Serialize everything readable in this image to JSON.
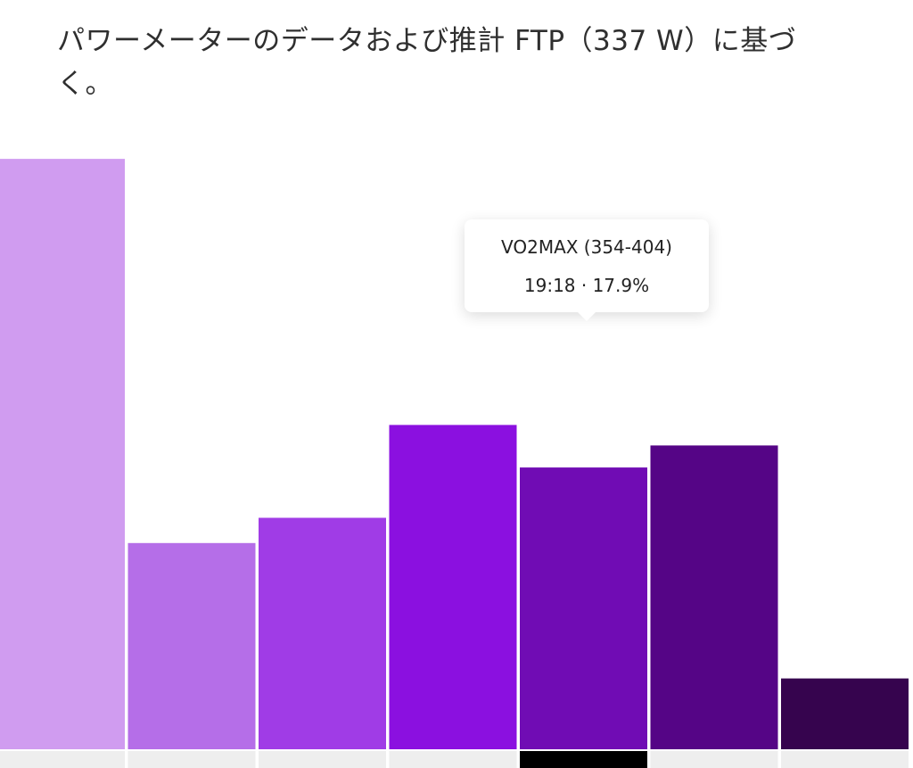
{
  "caption": "パワーメーターのデータおよび推計 FTP（337 W）に基づく。",
  "colors": {
    "background": "#ffffff",
    "axis_segment": "#eeeeee",
    "axis_segment_active": "#000000",
    "bar_colors": [
      "#d09cf0",
      "#b56ee8",
      "#a03ce6",
      "#8b10e0",
      "#700cb4",
      "#550586",
      "#36044e"
    ]
  },
  "tooltip": {
    "zone": "VO2MAX (354-404)",
    "value": "19:18 · 17.9%"
  },
  "chart_data": {
    "type": "bar",
    "categories": [
      "",
      "",
      "",
      "",
      "",
      "",
      ""
    ],
    "values": [
      37.5,
      13.1,
      14.7,
      20.6,
      17.9,
      19.3,
      4.5
    ],
    "unit": "%",
    "ylim": [
      0,
      42
    ],
    "active_index": 4,
    "grid": false,
    "legend": "none"
  }
}
